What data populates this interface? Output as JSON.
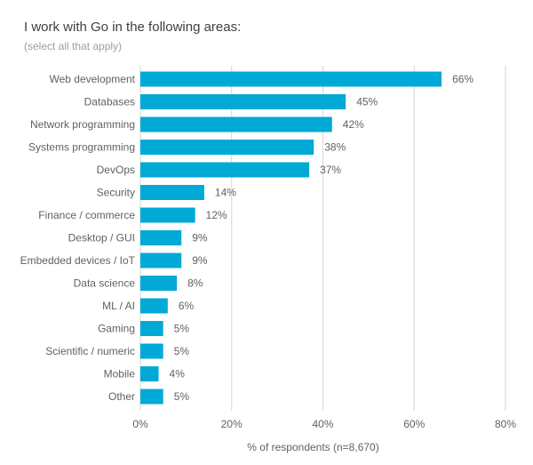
{
  "chart_data": {
    "type": "bar",
    "orientation": "horizontal",
    "title": "I work with Go in the following areas:",
    "subtitle": "(select all that apply)",
    "xlabel": "% of respondents (n=8,670)",
    "ylabel": "",
    "categories": [
      "Web development",
      "Databases",
      "Network programming",
      "Systems programming",
      "DevOps",
      "Security",
      "Finance / commerce",
      "Desktop / GUI",
      "Embedded devices / IoT",
      "Data science",
      "ML / AI",
      "Gaming",
      "Scientific / numeric",
      "Mobile",
      "Other"
    ],
    "values": [
      66,
      45,
      42,
      38,
      37,
      14,
      12,
      9,
      9,
      8,
      6,
      5,
      5,
      4,
      5
    ],
    "value_labels": [
      "66%",
      "45%",
      "42%",
      "38%",
      "37%",
      "14%",
      "12%",
      "9%",
      "9%",
      "8%",
      "6%",
      "5%",
      "5%",
      "4%",
      "5%"
    ],
    "xlim": [
      0,
      80
    ],
    "xticks": [
      0,
      20,
      40,
      60,
      80
    ],
    "xtick_labels": [
      "0%",
      "20%",
      "40%",
      "60%",
      "80%"
    ],
    "grid": true,
    "bar_color": "#00a9d6",
    "grid_color": "#d6d6d6",
    "legend": "none"
  }
}
